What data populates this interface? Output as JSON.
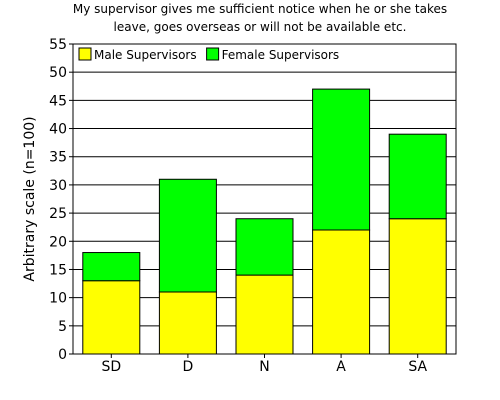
{
  "chart_data": {
    "type": "bar",
    "stacked": true,
    "title_lines": [
      "My supervisor gives me sufficient notice when he or she takes",
      "leave, goes overseas or will not be available etc."
    ],
    "xlabel": "",
    "ylabel": "Arbitrary scale (n=100)",
    "ylim": [
      0,
      55
    ],
    "ytick_step": 5,
    "grid": true,
    "legend_position": "top-left",
    "categories": [
      "SD",
      "D",
      "N",
      "A",
      "SA"
    ],
    "series": [
      {
        "name": "Male Supervisors",
        "color": "#ffff00",
        "values": [
          13,
          11,
          14,
          22,
          24
        ]
      },
      {
        "name": "Female Supervisors",
        "color": "#00ff00",
        "values": [
          5,
          20,
          10,
          25,
          15
        ]
      }
    ]
  }
}
